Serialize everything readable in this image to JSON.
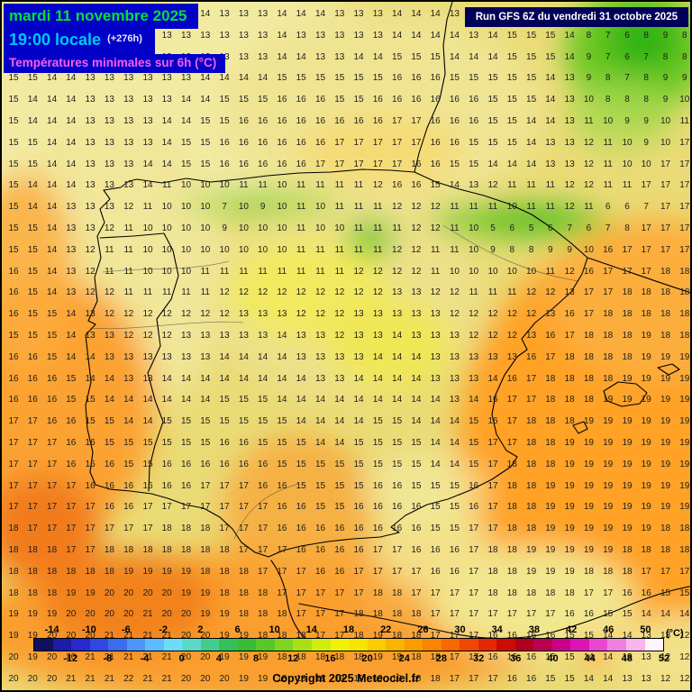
{
  "header": {
    "date": "mardi 11 novembre 2025",
    "time": "19:00 locale",
    "offset": "(+276h)",
    "param": "Températures minimales sur 6h (°C)",
    "run": "Run GFS 6Z du vendredi 31 octobre 2025",
    "colors": {
      "banner_bg": "#0101c8",
      "date_text": "#00e13a",
      "time_text": "#00c8f5",
      "param_text": "#ff5cf0",
      "run_bg": "#000058",
      "run_text": "#ffffff"
    }
  },
  "grid": {
    "rows": [
      "15 14 14 13 13 13 13 13 13 14 14 13 13 13 14 14 14 13 13 13 14 14 14 13 13 14 15 15 14 14 9 8 8 9 10 11",
      "15 14 14 13 13 13 13 13 13 13 13 13 13 13 14 13 13 13 13 13 14 14 14 14 13 14 15 15 15 14 8 7 6 8 9 8",
      "15 15 14 14 13 13 13 13 13 13 13 13 13 13 14 14 13 13 14 14 15 15 15 14 14 14 15 15 15 14 9 7 6 7 8 8",
      "15 15 14 14 13 13 13 13 13 13 14 14 14 14 15 15 15 15 15 15 16 16 16 15 15 15 15 15 14 13 9 8 7 8 9 9",
      "15 14 14 14 13 13 13 13 13 14 14 15 15 15 16 16 16 15 15 16 16 16 16 16 16 15 15 15 14 13 10 8 8 8 9 10",
      "15 14 14 14 13 13 13 13 14 14 15 15 16 16 16 16 16 16 16 16 17 17 16 16 16 15 15 14 14 13 11 10 9 9 10 11",
      "15 15 14 14 13 13 13 13 14 15 15 16 16 16 16 16 16 17 17 17 17 17 16 16 15 15 15 14 13 13 12 11 10 9 10 17",
      "15 15 14 14 13 13 13 14 14 15 15 16 16 16 16 16 17 17 17 17 17 16 16 15 15 14 14 14 13 13 12 11 10 10 17 17",
      "15 14 14 14 13 13 13 14 11 10 10 10 11 11 10 11 11 11 11 12 16 16 15 14 13 12 11 11 11 12 12 11 11 17 17 17",
      "15 14 14 13 13 13 12 11 10 10 10 7 10 9 10 11 10 11 11 11 12 12 12 11 11 11 10 11 11 12 11 6 6 7 17 17",
      "15 15 14 13 13 12 11 10 10 10 10 9 10 10 10 11 10 10 11 11 11 12 12 11 10 5 6 5 6 7 6 7 8 17 17 17",
      "15 15 14 13 12 11 11 10 10 10 10 10 10 10 10 11 11 11 11 11 12 12 11 11 10 9 8 8 9 9 10 16 17 17 17 17",
      "16 15 14 13 12 11 11 10 10 10 11 11 11 11 11 11 11 11 12 12 12 12 11 10 10 10 10 10 11 12 16 17 17 17 18 18",
      "16 15 14 13 12 12 11 11 11 11 11 12 12 12 12 12 12 12 12 12 13 13 12 12 11 11 11 12 12 13 17 17 18 18 18 18",
      "16 15 15 14 13 12 12 12 12 12 12 12 13 13 13 12 12 12 13 13 13 13 13 12 12 12 12 12 13 16 17 18 18 18 18 18",
      "15 15 15 14 13 13 12 12 12 13 13 13 13 13 14 13 13 12 13 13 14 13 13 13 12 12 12 13 16 17 18 18 18 19 18 18",
      "16 16 15 14 14 13 13 13 13 13 13 14 14 14 14 13 13 13 13 14 14 14 13 13 13 13 13 16 17 18 18 18 18 19 19 19",
      "16 16 16 15 14 14 13 13 14 14 14 14 14 14 14 14 13 13 14 14 14 14 13 13 13 14 16 17 18 18 18 18 19 19 19 19",
      "16 16 16 15 15 14 14 14 14 14 14 15 15 15 14 14 14 14 14 14 14 14 14 13 14 16 17 17 18 18 18 19 19 19 19 19",
      "17 17 16 16 15 15 14 14 15 15 15 15 15 15 15 14 14 14 14 15 15 14 14 14 15 16 17 18 18 18 19 19 19 19 19 19",
      "17 17 17 16 16 15 15 15 15 15 15 16 16 15 15 15 14 14 15 15 15 15 14 14 15 17 17 18 18 19 19 19 19 19 19 19",
      "17 17 17 16 16 16 15 15 16 16 16 16 16 16 15 15 15 15 15 15 15 15 14 14 15 17 18 18 18 19 19 19 19 19 19 19",
      "17 17 17 17 16 16 16 16 16 16 17 17 17 16 16 15 15 15 15 16 16 15 15 15 16 17 18 18 19 19 19 19 19 19 19 19",
      "17 17 17 17 17 16 16 17 17 17 17 17 17 17 16 16 15 15 16 16 16 16 15 15 16 17 18 18 19 19 19 19 19 19 19 19",
      "18 17 17 17 17 17 17 17 18 18 18 17 17 17 16 16 16 16 16 16 16 16 15 15 17 17 18 18 19 19 19 19 19 19 18 18",
      "18 18 18 17 17 18 18 18 18 18 18 18 17 17 17 16 16 16 16 17 17 16 16 16 17 18 18 19 19 19 19 19 18 18 18 18",
      "18 18 18 18 18 18 19 19 19 19 18 18 18 17 17 17 16 16 17 17 17 17 16 16 17 18 18 19 19 19 18 18 18 17 17 17",
      "18 18 18 19 19 20 20 20 20 19 19 18 18 18 17 17 17 17 17 18 18 17 17 17 17 18 18 18 18 18 17 17 16 16 15 15",
      "19 19 19 20 20 20 20 21 20 20 19 19 18 18 18 17 17 17 18 18 18 18 17 17 17 17 17 17 17 16 16 15 15 14 14 14",
      "19 19 20 20 20 21 21 21 21 20 20 19 19 18 18 18 17 17 18 19 18 18 17 17 17 16 16 16 16 15 15 14 14 13 13 12",
      "20 19 20 20 21 21 21 21 21 20 20 19 19 19 18 18 18 18 18 19 19 18 18 17 17 16 16 16 15 15 14 14 13 13 12 12",
      "20 20 20 21 21 21 22 21 21 20 20 20 19 19 18 18 18 19 19 19 19 18 18 17 17 17 16 16 15 15 14 14 13 13 12 12"
    ]
  },
  "scale": {
    "unit": "(°C)",
    "min": -16,
    "max": 52,
    "step": 2,
    "labels_top": [
      "-14",
      "-10",
      "-6",
      "-2",
      "2",
      "6",
      "10",
      "14",
      "18",
      "22",
      "26",
      "30",
      "34",
      "38",
      "42",
      "46",
      "50"
    ],
    "labels_bottom": [
      "-12",
      "-8",
      "-4",
      "0",
      "4",
      "8",
      "12",
      "16",
      "20",
      "24",
      "28",
      "32",
      "36",
      "40",
      "44",
      "48",
      "52"
    ],
    "colors": [
      "#10105e",
      "#1c1ca4",
      "#2828cc",
      "#3048e0",
      "#3c6cee",
      "#4c94f8",
      "#5cbcff",
      "#6cdcf8",
      "#5cd8c8",
      "#44cc8c",
      "#34c058",
      "#38bc34",
      "#58c828",
      "#80d420",
      "#a8e018",
      "#d0ec10",
      "#f0f008",
      "#f8e400",
      "#f8cc00",
      "#f8b400",
      "#f89c00",
      "#f88400",
      "#f86800",
      "#f04800",
      "#e42800",
      "#cc0c00",
      "#b00020",
      "#bc0050",
      "#cc0088",
      "#dc14b4",
      "#e848d0",
      "#f080e0",
      "#f8b4ec",
      "#fff4fb"
    ]
  },
  "copyright": "Copyright 2025 Meteociel.fr"
}
